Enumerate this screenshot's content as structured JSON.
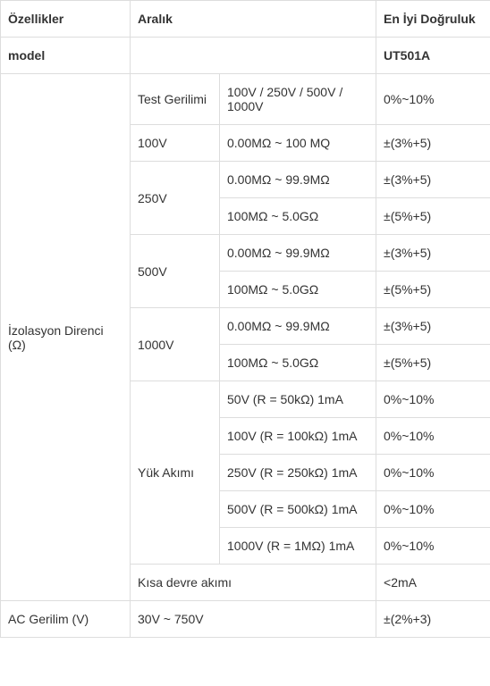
{
  "header": {
    "col1": "Özellikler",
    "col2": "Aralık",
    "col3": "En İyi Doğruluk"
  },
  "modelRow": {
    "label": "model",
    "value": "UT501A"
  },
  "isoBlock": {
    "label": "İzolasyon Direnci (Ω)",
    "rows": [
      {
        "sub": "Test Gerilimi",
        "range": "100V / 250V / 500V / 1000V",
        "acc": "0%~10%"
      },
      {
        "sub": "100V",
        "range": "0.00MΩ ~ 100 MQ",
        "acc": "±(3%+5)"
      },
      {
        "sub": "250V",
        "range": "0.00MΩ ~ 99.9MΩ",
        "acc": "±(3%+5)"
      },
      {
        "range": "100MΩ ~ 5.0GΩ",
        "acc": "±(5%+5)"
      },
      {
        "sub": "500V",
        "range": "0.00MΩ ~ 99.9MΩ",
        "acc": "±(3%+5)"
      },
      {
        "range": "100MΩ ~ 5.0GΩ",
        "acc": "±(5%+5)"
      },
      {
        "sub": "1000V",
        "range": "0.00MΩ ~ 99.9MΩ",
        "acc": "±(3%+5)"
      },
      {
        "range": "100MΩ ~ 5.0GΩ",
        "acc": "±(5%+5)"
      },
      {
        "sub": "Yük Akımı",
        "range": "50V (R = 50kΩ) 1mA",
        "acc": "0%~10%"
      },
      {
        "range": "100V (R = 100kΩ) 1mA",
        "acc": "0%~10%"
      },
      {
        "range": "250V (R = 250kΩ) 1mA",
        "acc": "0%~10%"
      },
      {
        "range": "500V (R = 500kΩ) 1mA",
        "acc": "0%~10%"
      },
      {
        "range": "1000V (R = 1MΩ) 1mA",
        "acc": "0%~10%"
      },
      {
        "sub": "Kısa devre akımı",
        "range": "",
        "acc": "<2mA"
      }
    ]
  },
  "acRow": {
    "label": "AC Gerilim (V)",
    "range": "30V ~ 750V",
    "acc": "±(2%+3)"
  }
}
